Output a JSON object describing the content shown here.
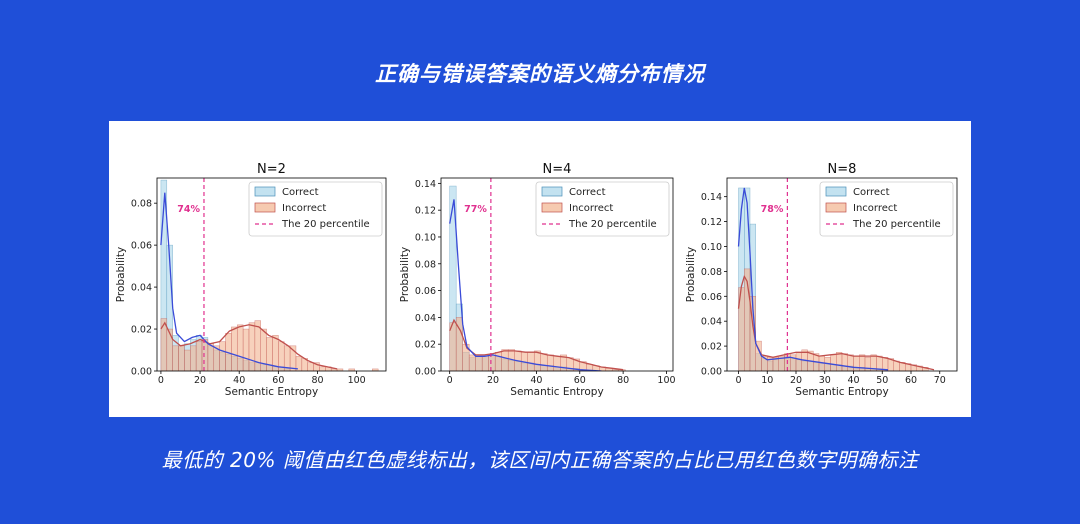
{
  "page": {
    "title": "正确与错误答案的语义熵分布情况",
    "caption": "最低的 20% 阈值由红色虚线标出，该区间内正确答案的占比已用红色数字明确标注"
  },
  "colors": {
    "background": "#1f4fd8",
    "correct_fill": "#a9d6ea",
    "correct_line": "#3a4bd8",
    "incorrect_fill": "#f2b38f",
    "incorrect_line": "#c0504d",
    "percentile_line": "#e0308f"
  },
  "chart_data": [
    {
      "type": "histogram",
      "title": "N=2",
      "xlabel": "Semantic Entropy",
      "ylabel": "Probability",
      "xlim": [
        -2,
        115
      ],
      "ylim": [
        0,
        0.092
      ],
      "xticks": [
        0,
        20,
        40,
        60,
        80,
        100
      ],
      "yticks": [
        0.0,
        0.02,
        0.04,
        0.06,
        0.08
      ],
      "ytick_labels": [
        "0.00",
        "0.02",
        "0.04",
        "0.06",
        "0.08"
      ],
      "percentile_x": 22,
      "percentile_label": "74%",
      "legend": [
        "Correct",
        "Incorrect",
        "The 20 percentile"
      ],
      "legend_position": "upper right",
      "bin_width": 3,
      "correct_bins": [
        [
          0,
          0.091
        ],
        [
          3,
          0.06
        ],
        [
          6,
          0.017
        ],
        [
          9,
          0.012
        ],
        [
          12,
          0.013
        ],
        [
          15,
          0.015
        ],
        [
          18,
          0.017
        ],
        [
          21,
          0.016
        ],
        [
          24,
          0.012
        ],
        [
          27,
          0.01
        ],
        [
          30,
          0.009
        ],
        [
          33,
          0.008
        ],
        [
          36,
          0.007
        ],
        [
          39,
          0.006
        ],
        [
          42,
          0.005
        ],
        [
          45,
          0.004
        ],
        [
          48,
          0.004
        ],
        [
          51,
          0.003
        ],
        [
          54,
          0.003
        ],
        [
          57,
          0.002
        ],
        [
          60,
          0.002
        ],
        [
          63,
          0.001
        ]
      ],
      "incorrect_bins": [
        [
          0,
          0.025
        ],
        [
          3,
          0.02
        ],
        [
          6,
          0.012
        ],
        [
          9,
          0.012
        ],
        [
          12,
          0.01
        ],
        [
          15,
          0.012
        ],
        [
          18,
          0.014
        ],
        [
          21,
          0.015
        ],
        [
          24,
          0.013
        ],
        [
          27,
          0.012
        ],
        [
          30,
          0.014
        ],
        [
          33,
          0.018
        ],
        [
          36,
          0.021
        ],
        [
          39,
          0.022
        ],
        [
          42,
          0.02
        ],
        [
          45,
          0.023
        ],
        [
          48,
          0.024
        ],
        [
          51,
          0.02
        ],
        [
          54,
          0.016
        ],
        [
          57,
          0.017
        ],
        [
          60,
          0.014
        ],
        [
          63,
          0.012
        ],
        [
          66,
          0.012
        ],
        [
          69,
          0.007
        ],
        [
          72,
          0.006
        ],
        [
          75,
          0.004
        ],
        [
          78,
          0.004
        ],
        [
          81,
          0.002
        ],
        [
          84,
          0.002
        ],
        [
          87,
          0.001
        ],
        [
          90,
          0.001
        ],
        [
          96,
          0.001
        ],
        [
          108,
          0.001
        ]
      ],
      "correct_kde": [
        [
          0,
          0.06
        ],
        [
          2,
          0.085
        ],
        [
          4,
          0.06
        ],
        [
          6,
          0.03
        ],
        [
          8,
          0.018
        ],
        [
          12,
          0.014
        ],
        [
          16,
          0.016
        ],
        [
          20,
          0.017
        ],
        [
          24,
          0.013
        ],
        [
          30,
          0.01
        ],
        [
          40,
          0.007
        ],
        [
          50,
          0.004
        ],
        [
          60,
          0.002
        ],
        [
          70,
          0.001
        ]
      ],
      "incorrect_kde": [
        [
          0,
          0.02
        ],
        [
          2,
          0.023
        ],
        [
          6,
          0.015
        ],
        [
          10,
          0.012
        ],
        [
          15,
          0.013
        ],
        [
          20,
          0.015
        ],
        [
          25,
          0.013
        ],
        [
          30,
          0.014
        ],
        [
          35,
          0.019
        ],
        [
          40,
          0.021
        ],
        [
          45,
          0.022
        ],
        [
          50,
          0.021
        ],
        [
          55,
          0.017
        ],
        [
          60,
          0.015
        ],
        [
          65,
          0.012
        ],
        [
          70,
          0.008
        ],
        [
          75,
          0.005
        ],
        [
          80,
          0.003
        ],
        [
          90,
          0.001
        ]
      ]
    },
    {
      "type": "histogram",
      "title": "N=4",
      "xlabel": "Semantic Entropy",
      "ylabel": "Probability",
      "xlim": [
        -4,
        103
      ],
      "ylim": [
        0,
        0.144
      ],
      "xticks": [
        0,
        20,
        40,
        60,
        80,
        100
      ],
      "yticks": [
        0.0,
        0.02,
        0.04,
        0.06,
        0.08,
        0.1,
        0.12,
        0.14
      ],
      "ytick_labels": [
        "0.00",
        "0.02",
        "0.04",
        "0.06",
        "0.08",
        "0.10",
        "0.12",
        "0.14"
      ],
      "percentile_x": 19,
      "percentile_label": "77%",
      "legend": [
        "Correct",
        "Incorrect",
        "The 20 percentile"
      ],
      "legend_position": "upper right",
      "bin_width": 3,
      "correct_bins": [
        [
          0,
          0.138
        ],
        [
          3,
          0.05
        ],
        [
          6,
          0.014
        ],
        [
          9,
          0.01
        ],
        [
          12,
          0.011
        ],
        [
          15,
          0.011
        ],
        [
          18,
          0.012
        ],
        [
          21,
          0.011
        ],
        [
          24,
          0.009
        ],
        [
          27,
          0.008
        ],
        [
          30,
          0.007
        ],
        [
          33,
          0.006
        ],
        [
          36,
          0.006
        ],
        [
          39,
          0.005
        ],
        [
          42,
          0.004
        ],
        [
          45,
          0.004
        ],
        [
          48,
          0.003
        ],
        [
          51,
          0.003
        ],
        [
          54,
          0.002
        ],
        [
          57,
          0.002
        ],
        [
          60,
          0.001
        ]
      ],
      "incorrect_bins": [
        [
          0,
          0.036
        ],
        [
          3,
          0.04
        ],
        [
          6,
          0.02
        ],
        [
          9,
          0.012
        ],
        [
          12,
          0.011
        ],
        [
          15,
          0.011
        ],
        [
          18,
          0.012
        ],
        [
          21,
          0.014
        ],
        [
          24,
          0.016
        ],
        [
          27,
          0.016
        ],
        [
          30,
          0.015
        ],
        [
          33,
          0.014
        ],
        [
          36,
          0.014
        ],
        [
          39,
          0.015
        ],
        [
          42,
          0.013
        ],
        [
          45,
          0.012
        ],
        [
          48,
          0.011
        ],
        [
          51,
          0.012
        ],
        [
          54,
          0.01
        ],
        [
          57,
          0.009
        ],
        [
          60,
          0.007
        ],
        [
          63,
          0.005
        ],
        [
          66,
          0.004
        ],
        [
          69,
          0.003
        ],
        [
          72,
          0.002
        ],
        [
          75,
          0.001
        ],
        [
          78,
          0.001
        ]
      ],
      "correct_kde": [
        [
          0,
          0.11
        ],
        [
          2,
          0.128
        ],
        [
          4,
          0.08
        ],
        [
          6,
          0.035
        ],
        [
          8,
          0.018
        ],
        [
          12,
          0.011
        ],
        [
          16,
          0.011
        ],
        [
          20,
          0.012
        ],
        [
          25,
          0.01
        ],
        [
          30,
          0.008
        ],
        [
          40,
          0.005
        ],
        [
          50,
          0.003
        ],
        [
          60,
          0.001
        ],
        [
          70,
          0.0
        ]
      ],
      "incorrect_kde": [
        [
          0,
          0.03
        ],
        [
          2,
          0.038
        ],
        [
          5,
          0.03
        ],
        [
          8,
          0.017
        ],
        [
          12,
          0.012
        ],
        [
          16,
          0.012
        ],
        [
          20,
          0.013
        ],
        [
          25,
          0.015
        ],
        [
          30,
          0.015
        ],
        [
          35,
          0.014
        ],
        [
          40,
          0.014
        ],
        [
          45,
          0.012
        ],
        [
          50,
          0.011
        ],
        [
          55,
          0.01
        ],
        [
          60,
          0.007
        ],
        [
          65,
          0.005
        ],
        [
          70,
          0.003
        ],
        [
          75,
          0.002
        ],
        [
          80,
          0.001
        ]
      ]
    },
    {
      "type": "histogram",
      "title": "N=8",
      "xlabel": "Semantic Entropy",
      "ylabel": "Probability",
      "xlim": [
        -4,
        76
      ],
      "ylim": [
        0,
        0.155
      ],
      "xticks": [
        0,
        10,
        20,
        30,
        40,
        50,
        60,
        70
      ],
      "yticks": [
        0.0,
        0.02,
        0.04,
        0.06,
        0.08,
        0.1,
        0.12,
        0.14
      ],
      "ytick_labels": [
        "0.00",
        "0.02",
        "0.04",
        "0.06",
        "0.08",
        "0.10",
        "0.12",
        "0.14"
      ],
      "percentile_x": 17,
      "percentile_label": "78%",
      "legend": [
        "Correct",
        "Incorrect",
        "The 20 percentile"
      ],
      "legend_position": "upper right",
      "bin_width": 2,
      "correct_bins": [
        [
          0,
          0.147
        ],
        [
          2,
          0.147
        ],
        [
          4,
          0.118
        ],
        [
          6,
          0.014
        ],
        [
          8,
          0.01
        ],
        [
          10,
          0.008
        ],
        [
          12,
          0.009
        ],
        [
          14,
          0.01
        ],
        [
          16,
          0.012
        ],
        [
          18,
          0.01
        ],
        [
          20,
          0.009
        ],
        [
          22,
          0.008
        ],
        [
          24,
          0.008
        ],
        [
          26,
          0.007
        ],
        [
          28,
          0.006
        ],
        [
          30,
          0.006
        ],
        [
          32,
          0.005
        ],
        [
          34,
          0.005
        ],
        [
          36,
          0.004
        ],
        [
          38,
          0.004
        ],
        [
          40,
          0.003
        ],
        [
          42,
          0.003
        ],
        [
          44,
          0.002
        ],
        [
          46,
          0.002
        ],
        [
          48,
          0.001
        ]
      ],
      "incorrect_bins": [
        [
          0,
          0.067
        ],
        [
          2,
          0.082
        ],
        [
          4,
          0.06
        ],
        [
          6,
          0.024
        ],
        [
          8,
          0.012
        ],
        [
          10,
          0.011
        ],
        [
          12,
          0.011
        ],
        [
          14,
          0.012
        ],
        [
          16,
          0.014
        ],
        [
          18,
          0.013
        ],
        [
          20,
          0.015
        ],
        [
          22,
          0.017
        ],
        [
          24,
          0.016
        ],
        [
          26,
          0.014
        ],
        [
          28,
          0.012
        ],
        [
          30,
          0.011
        ],
        [
          32,
          0.013
        ],
        [
          34,
          0.015
        ],
        [
          36,
          0.014
        ],
        [
          38,
          0.013
        ],
        [
          40,
          0.012
        ],
        [
          42,
          0.013
        ],
        [
          44,
          0.011
        ],
        [
          46,
          0.013
        ],
        [
          48,
          0.012
        ],
        [
          50,
          0.011
        ],
        [
          52,
          0.01
        ],
        [
          54,
          0.008
        ],
        [
          56,
          0.007
        ],
        [
          58,
          0.006
        ],
        [
          60,
          0.005
        ],
        [
          62,
          0.004
        ],
        [
          64,
          0.003
        ]
      ],
      "correct_kde": [
        [
          0,
          0.1
        ],
        [
          1,
          0.13
        ],
        [
          2,
          0.147
        ],
        [
          3,
          0.135
        ],
        [
          4,
          0.095
        ],
        [
          5,
          0.05
        ],
        [
          6,
          0.022
        ],
        [
          8,
          0.012
        ],
        [
          10,
          0.009
        ],
        [
          14,
          0.01
        ],
        [
          18,
          0.011
        ],
        [
          22,
          0.009
        ],
        [
          28,
          0.007
        ],
        [
          34,
          0.005
        ],
        [
          40,
          0.003
        ],
        [
          46,
          0.002
        ],
        [
          52,
          0.001
        ]
      ],
      "incorrect_kde": [
        [
          0,
          0.05
        ],
        [
          1,
          0.068
        ],
        [
          2,
          0.076
        ],
        [
          3,
          0.072
        ],
        [
          4,
          0.056
        ],
        [
          5,
          0.036
        ],
        [
          6,
          0.022
        ],
        [
          8,
          0.013
        ],
        [
          12,
          0.011
        ],
        [
          16,
          0.013
        ],
        [
          20,
          0.015
        ],
        [
          24,
          0.015
        ],
        [
          28,
          0.012
        ],
        [
          32,
          0.013
        ],
        [
          36,
          0.014
        ],
        [
          40,
          0.012
        ],
        [
          44,
          0.012
        ],
        [
          48,
          0.012
        ],
        [
          52,
          0.01
        ],
        [
          56,
          0.007
        ],
        [
          60,
          0.005
        ],
        [
          64,
          0.003
        ],
        [
          68,
          0.001
        ]
      ]
    }
  ]
}
